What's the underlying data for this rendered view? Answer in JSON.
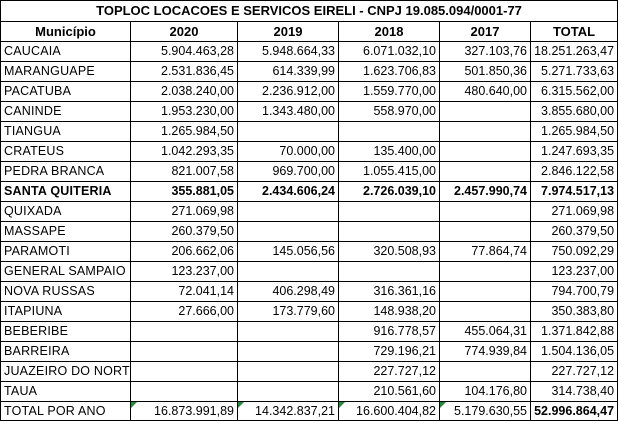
{
  "sheet": {
    "title": "TOPLOC LOCACOES E SERVICOS EIRELI  - CNPJ 19.085.094/0001-77",
    "headers": [
      "Município",
      "2020",
      "2019",
      "2018",
      "2017",
      "TOTAL"
    ],
    "rows": [
      {
        "municipio": "CAUCAIA",
        "v2020": "5.904.463,28",
        "v2019": "5.948.664,33",
        "v2018": "6.071.032,10",
        "v2017": "327.103,76",
        "total": "18.251.263,47"
      },
      {
        "municipio": "MARANGUAPE",
        "v2020": "2.531.836,45",
        "v2019": "614.339,99",
        "v2018": "1.623.706,83",
        "v2017": "501.850,36",
        "total": "5.271.733,63"
      },
      {
        "municipio": "PACATUBA",
        "v2020": "2.038.240,00",
        "v2019": "2.236.912,00",
        "v2018": "1.559.770,00",
        "v2017": "480.640,00",
        "total": "6.315.562,00"
      },
      {
        "municipio": "CANINDE",
        "v2020": "1.953.230,00",
        "v2019": "1.343.480,00",
        "v2018": "558.970,00",
        "v2017": "",
        "total": "3.855.680,00"
      },
      {
        "municipio": "TIANGUA",
        "v2020": "1.265.984,50",
        "v2019": "",
        "v2018": "",
        "v2017": "",
        "total": "1.265.984,50"
      },
      {
        "municipio": "CRATEUS",
        "v2020": "1.042.293,35",
        "v2019": "70.000,00",
        "v2018": "135.400,00",
        "v2017": "",
        "total": "1.247.693,35"
      },
      {
        "municipio": "PEDRA BRANCA",
        "v2020": "821.007,58",
        "v2019": "969.700,00",
        "v2018": "1.055.415,00",
        "v2017": "",
        "total": "2.846.122,58"
      },
      {
        "municipio": "SANTA QUITERIA",
        "v2020": "355.881,05",
        "v2019": "2.434.606,24",
        "v2018": "2.726.039,10",
        "v2017": "2.457.990,74",
        "total": "7.974.517,13",
        "bold": true
      },
      {
        "municipio": "QUIXADA",
        "v2020": "271.069,98",
        "v2019": "",
        "v2018": "",
        "v2017": "",
        "total": "271.069,98"
      },
      {
        "municipio": "MASSAPE",
        "v2020": "260.379,50",
        "v2019": "",
        "v2018": "",
        "v2017": "",
        "total": "260.379,50"
      },
      {
        "municipio": "PARAMOTI",
        "v2020": "206.662,06",
        "v2019": "145.056,56",
        "v2018": "320.508,93",
        "v2017": "77.864,74",
        "total": "750.092,29"
      },
      {
        "municipio": "GENERAL SAMPAIO",
        "v2020": "123.237,00",
        "v2019": "",
        "v2018": "",
        "v2017": "",
        "total": "123.237,00"
      },
      {
        "municipio": "NOVA RUSSAS",
        "v2020": "72.041,14",
        "v2019": "406.298,49",
        "v2018": "316.361,16",
        "v2017": "",
        "total": "794.700,79"
      },
      {
        "municipio": "ITAPIUNA",
        "v2020": "27.666,00",
        "v2019": "173.779,60",
        "v2018": "148.938,20",
        "v2017": "",
        "total": "350.383,80"
      },
      {
        "municipio": "BEBERIBE",
        "v2020": "",
        "v2019": "",
        "v2018": "916.778,57",
        "v2017": "455.064,31",
        "total": "1.371.842,88"
      },
      {
        "municipio": "BARREIRA",
        "v2020": "",
        "v2019": "",
        "v2018": "729.196,21",
        "v2017": "774.939,84",
        "total": "1.504.136,05"
      },
      {
        "municipio": "JUAZEIRO DO NORTE",
        "v2020": "",
        "v2019": "",
        "v2018": "227.727,12",
        "v2017": "",
        "total": "227.727,12"
      },
      {
        "municipio": "TAUA",
        "v2020": "",
        "v2019": "",
        "v2018": "210.561,60",
        "v2017": "104.176,80",
        "total": "314.738,40"
      }
    ],
    "footer": {
      "label": "TOTAL POR ANO",
      "v2020": "16.873.991,89",
      "v2019": "14.342.837,21",
      "v2018": "16.600.404,82",
      "v2017": "5.179.630,55",
      "total": "52.996.864,47"
    },
    "colors": {
      "border": "#000000",
      "formula_indicator": "#1e8b3a"
    }
  }
}
